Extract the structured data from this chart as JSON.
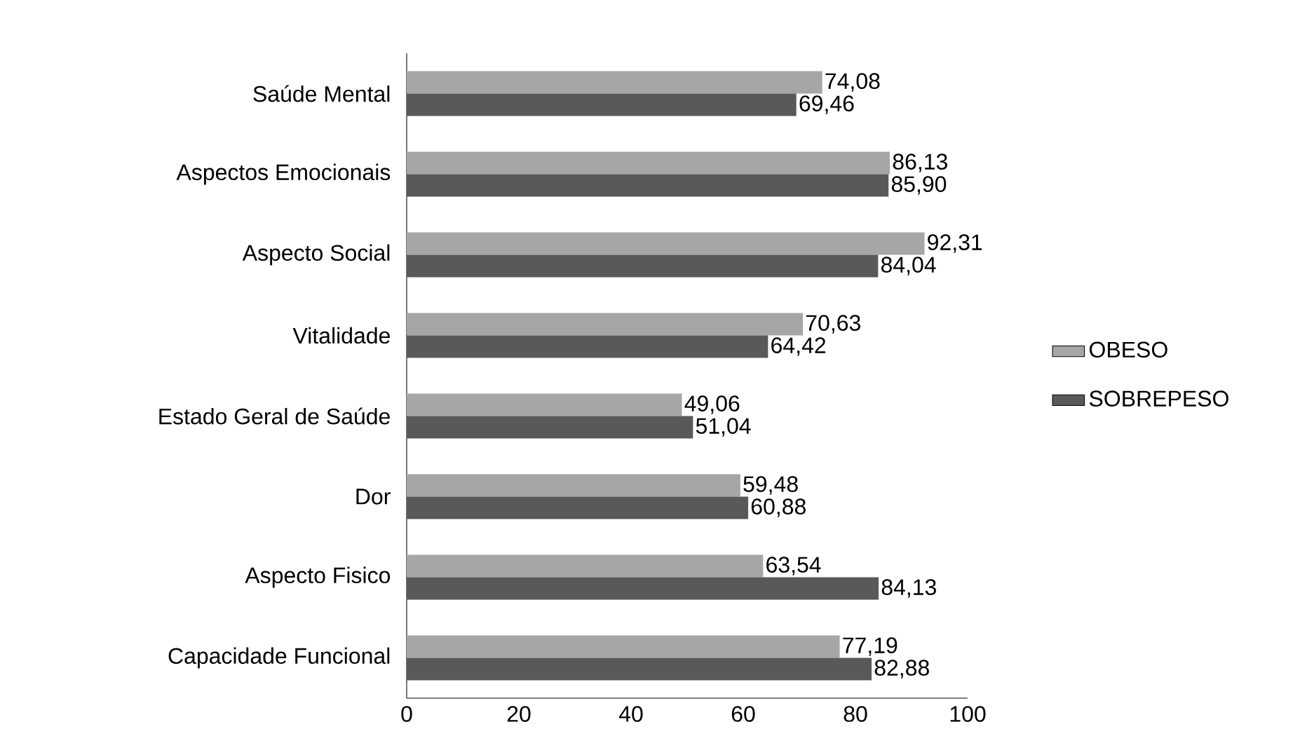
{
  "chart_data": {
    "type": "bar",
    "orientation": "horizontal",
    "categories": [
      "Saúde Mental",
      "Aspectos Emocionais",
      "Aspecto Social",
      "Vitalidade",
      "Estado Geral de Saúde",
      "Dor",
      "Aspecto Fisico",
      "Capacidade Funcional"
    ],
    "series": [
      {
        "name": "OBESO",
        "color": "#a6a6a6",
        "values": [
          74.08,
          86.13,
          92.31,
          70.63,
          49.06,
          59.48,
          63.54,
          77.19
        ],
        "value_labels": [
          "74,08",
          "86,13",
          "92,31",
          "70,63",
          "49,06",
          "59,48",
          "63,54",
          "77,19"
        ]
      },
      {
        "name": "SOBREPESO",
        "color": "#595959",
        "values": [
          69.46,
          85.9,
          84.04,
          64.42,
          51.04,
          60.88,
          84.13,
          82.88
        ],
        "value_labels": [
          "69,46",
          "85,90",
          "84,04",
          "64,42",
          "51,04",
          "60,88",
          "84,13",
          "82,88"
        ]
      }
    ],
    "xlim": [
      0,
      100
    ],
    "xticks": [
      0,
      20,
      40,
      60,
      80,
      100
    ],
    "legend": "right"
  }
}
